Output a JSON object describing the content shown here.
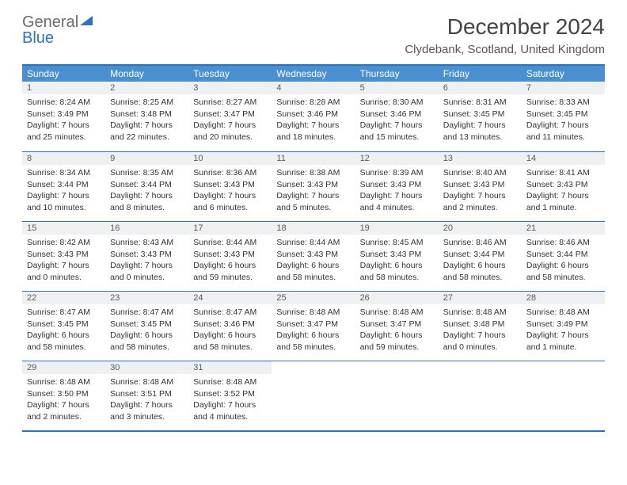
{
  "logo": {
    "word1": "General",
    "word2": "Blue",
    "triangle_color": "#2b74b8"
  },
  "title": "December 2024",
  "location": "Clydebank, Scotland, United Kingdom",
  "colors": {
    "header_bg": "#4a90d0",
    "border": "#2b74b8",
    "daynum_bg": "#eef0f1"
  },
  "day_headers": [
    "Sunday",
    "Monday",
    "Tuesday",
    "Wednesday",
    "Thursday",
    "Friday",
    "Saturday"
  ],
  "weeks": [
    [
      {
        "num": "1",
        "sunrise": "Sunrise: 8:24 AM",
        "sunset": "Sunset: 3:49 PM",
        "daylight1": "Daylight: 7 hours",
        "daylight2": "and 25 minutes."
      },
      {
        "num": "2",
        "sunrise": "Sunrise: 8:25 AM",
        "sunset": "Sunset: 3:48 PM",
        "daylight1": "Daylight: 7 hours",
        "daylight2": "and 22 minutes."
      },
      {
        "num": "3",
        "sunrise": "Sunrise: 8:27 AM",
        "sunset": "Sunset: 3:47 PM",
        "daylight1": "Daylight: 7 hours",
        "daylight2": "and 20 minutes."
      },
      {
        "num": "4",
        "sunrise": "Sunrise: 8:28 AM",
        "sunset": "Sunset: 3:46 PM",
        "daylight1": "Daylight: 7 hours",
        "daylight2": "and 18 minutes."
      },
      {
        "num": "5",
        "sunrise": "Sunrise: 8:30 AM",
        "sunset": "Sunset: 3:46 PM",
        "daylight1": "Daylight: 7 hours",
        "daylight2": "and 15 minutes."
      },
      {
        "num": "6",
        "sunrise": "Sunrise: 8:31 AM",
        "sunset": "Sunset: 3:45 PM",
        "daylight1": "Daylight: 7 hours",
        "daylight2": "and 13 minutes."
      },
      {
        "num": "7",
        "sunrise": "Sunrise: 8:33 AM",
        "sunset": "Sunset: 3:45 PM",
        "daylight1": "Daylight: 7 hours",
        "daylight2": "and 11 minutes."
      }
    ],
    [
      {
        "num": "8",
        "sunrise": "Sunrise: 8:34 AM",
        "sunset": "Sunset: 3:44 PM",
        "daylight1": "Daylight: 7 hours",
        "daylight2": "and 10 minutes."
      },
      {
        "num": "9",
        "sunrise": "Sunrise: 8:35 AM",
        "sunset": "Sunset: 3:44 PM",
        "daylight1": "Daylight: 7 hours",
        "daylight2": "and 8 minutes."
      },
      {
        "num": "10",
        "sunrise": "Sunrise: 8:36 AM",
        "sunset": "Sunset: 3:43 PM",
        "daylight1": "Daylight: 7 hours",
        "daylight2": "and 6 minutes."
      },
      {
        "num": "11",
        "sunrise": "Sunrise: 8:38 AM",
        "sunset": "Sunset: 3:43 PM",
        "daylight1": "Daylight: 7 hours",
        "daylight2": "and 5 minutes."
      },
      {
        "num": "12",
        "sunrise": "Sunrise: 8:39 AM",
        "sunset": "Sunset: 3:43 PM",
        "daylight1": "Daylight: 7 hours",
        "daylight2": "and 4 minutes."
      },
      {
        "num": "13",
        "sunrise": "Sunrise: 8:40 AM",
        "sunset": "Sunset: 3:43 PM",
        "daylight1": "Daylight: 7 hours",
        "daylight2": "and 2 minutes."
      },
      {
        "num": "14",
        "sunrise": "Sunrise: 8:41 AM",
        "sunset": "Sunset: 3:43 PM",
        "daylight1": "Daylight: 7 hours",
        "daylight2": "and 1 minute."
      }
    ],
    [
      {
        "num": "15",
        "sunrise": "Sunrise: 8:42 AM",
        "sunset": "Sunset: 3:43 PM",
        "daylight1": "Daylight: 7 hours",
        "daylight2": "and 0 minutes."
      },
      {
        "num": "16",
        "sunrise": "Sunrise: 8:43 AM",
        "sunset": "Sunset: 3:43 PM",
        "daylight1": "Daylight: 7 hours",
        "daylight2": "and 0 minutes."
      },
      {
        "num": "17",
        "sunrise": "Sunrise: 8:44 AM",
        "sunset": "Sunset: 3:43 PM",
        "daylight1": "Daylight: 6 hours",
        "daylight2": "and 59 minutes."
      },
      {
        "num": "18",
        "sunrise": "Sunrise: 8:44 AM",
        "sunset": "Sunset: 3:43 PM",
        "daylight1": "Daylight: 6 hours",
        "daylight2": "and 58 minutes."
      },
      {
        "num": "19",
        "sunrise": "Sunrise: 8:45 AM",
        "sunset": "Sunset: 3:43 PM",
        "daylight1": "Daylight: 6 hours",
        "daylight2": "and 58 minutes."
      },
      {
        "num": "20",
        "sunrise": "Sunrise: 8:46 AM",
        "sunset": "Sunset: 3:44 PM",
        "daylight1": "Daylight: 6 hours",
        "daylight2": "and 58 minutes."
      },
      {
        "num": "21",
        "sunrise": "Sunrise: 8:46 AM",
        "sunset": "Sunset: 3:44 PM",
        "daylight1": "Daylight: 6 hours",
        "daylight2": "and 58 minutes."
      }
    ],
    [
      {
        "num": "22",
        "sunrise": "Sunrise: 8:47 AM",
        "sunset": "Sunset: 3:45 PM",
        "daylight1": "Daylight: 6 hours",
        "daylight2": "and 58 minutes."
      },
      {
        "num": "23",
        "sunrise": "Sunrise: 8:47 AM",
        "sunset": "Sunset: 3:45 PM",
        "daylight1": "Daylight: 6 hours",
        "daylight2": "and 58 minutes."
      },
      {
        "num": "24",
        "sunrise": "Sunrise: 8:47 AM",
        "sunset": "Sunset: 3:46 PM",
        "daylight1": "Daylight: 6 hours",
        "daylight2": "and 58 minutes."
      },
      {
        "num": "25",
        "sunrise": "Sunrise: 8:48 AM",
        "sunset": "Sunset: 3:47 PM",
        "daylight1": "Daylight: 6 hours",
        "daylight2": "and 58 minutes."
      },
      {
        "num": "26",
        "sunrise": "Sunrise: 8:48 AM",
        "sunset": "Sunset: 3:47 PM",
        "daylight1": "Daylight: 6 hours",
        "daylight2": "and 59 minutes."
      },
      {
        "num": "27",
        "sunrise": "Sunrise: 8:48 AM",
        "sunset": "Sunset: 3:48 PM",
        "daylight1": "Daylight: 7 hours",
        "daylight2": "and 0 minutes."
      },
      {
        "num": "28",
        "sunrise": "Sunrise: 8:48 AM",
        "sunset": "Sunset: 3:49 PM",
        "daylight1": "Daylight: 7 hours",
        "daylight2": "and 1 minute."
      }
    ],
    [
      {
        "num": "29",
        "sunrise": "Sunrise: 8:48 AM",
        "sunset": "Sunset: 3:50 PM",
        "daylight1": "Daylight: 7 hours",
        "daylight2": "and 2 minutes."
      },
      {
        "num": "30",
        "sunrise": "Sunrise: 8:48 AM",
        "sunset": "Sunset: 3:51 PM",
        "daylight1": "Daylight: 7 hours",
        "daylight2": "and 3 minutes."
      },
      {
        "num": "31",
        "sunrise": "Sunrise: 8:48 AM",
        "sunset": "Sunset: 3:52 PM",
        "daylight1": "Daylight: 7 hours",
        "daylight2": "and 4 minutes."
      },
      null,
      null,
      null,
      null
    ]
  ]
}
